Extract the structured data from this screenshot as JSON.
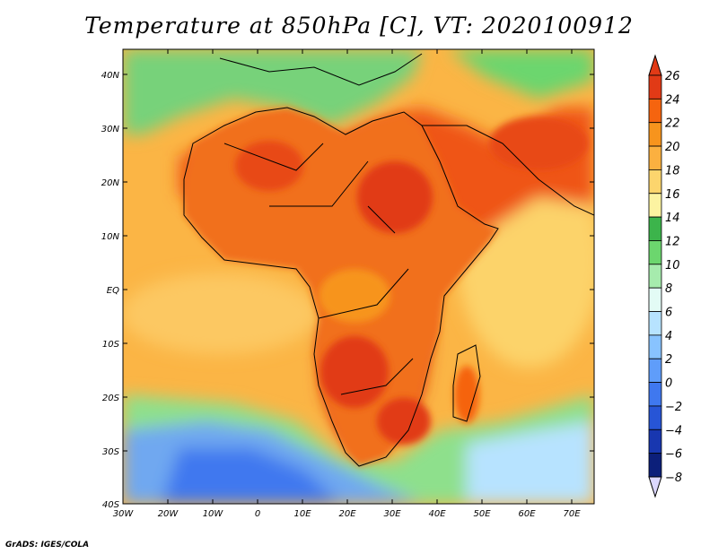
{
  "title": "Temperature at 850hPa [C], VT: 2020100912",
  "credit": "GrADS: IGES/COLA",
  "lat_labels": [
    "40N",
    "30N",
    "20N",
    "10N",
    "EQ",
    "10S",
    "20S",
    "30S",
    "40S"
  ],
  "lon_labels": [
    "30W",
    "20W",
    "10W",
    "0",
    "10E",
    "20E",
    "30E",
    "40E",
    "50E",
    "60E",
    "70E"
  ],
  "colorbar": {
    "levels": [
      "26",
      "24",
      "22",
      "20",
      "18",
      "16",
      "14",
      "12",
      "10",
      "8",
      "6",
      "4",
      "2",
      "0",
      "−2",
      "−4",
      "−6",
      "−8"
    ],
    "colors": [
      "#e13a16",
      "#f5640f",
      "#f7941d",
      "#fbb040",
      "#fcd56d",
      "#fcf3a1",
      "#3cb44b",
      "#6cd66e",
      "#a6ebad",
      "#e3fbf5",
      "#b7e3ff",
      "#88c3ff",
      "#5f9dfa",
      "#3f78ef",
      "#2755d6",
      "#1837b0",
      "#0c1f7a"
    ]
  },
  "map": {
    "ocean_color": "#fbb545",
    "land_hot_color": "#e64a18",
    "north_med_color": "#7cd67f",
    "south_ocean_cold_color": "#6fa8f0"
  }
}
